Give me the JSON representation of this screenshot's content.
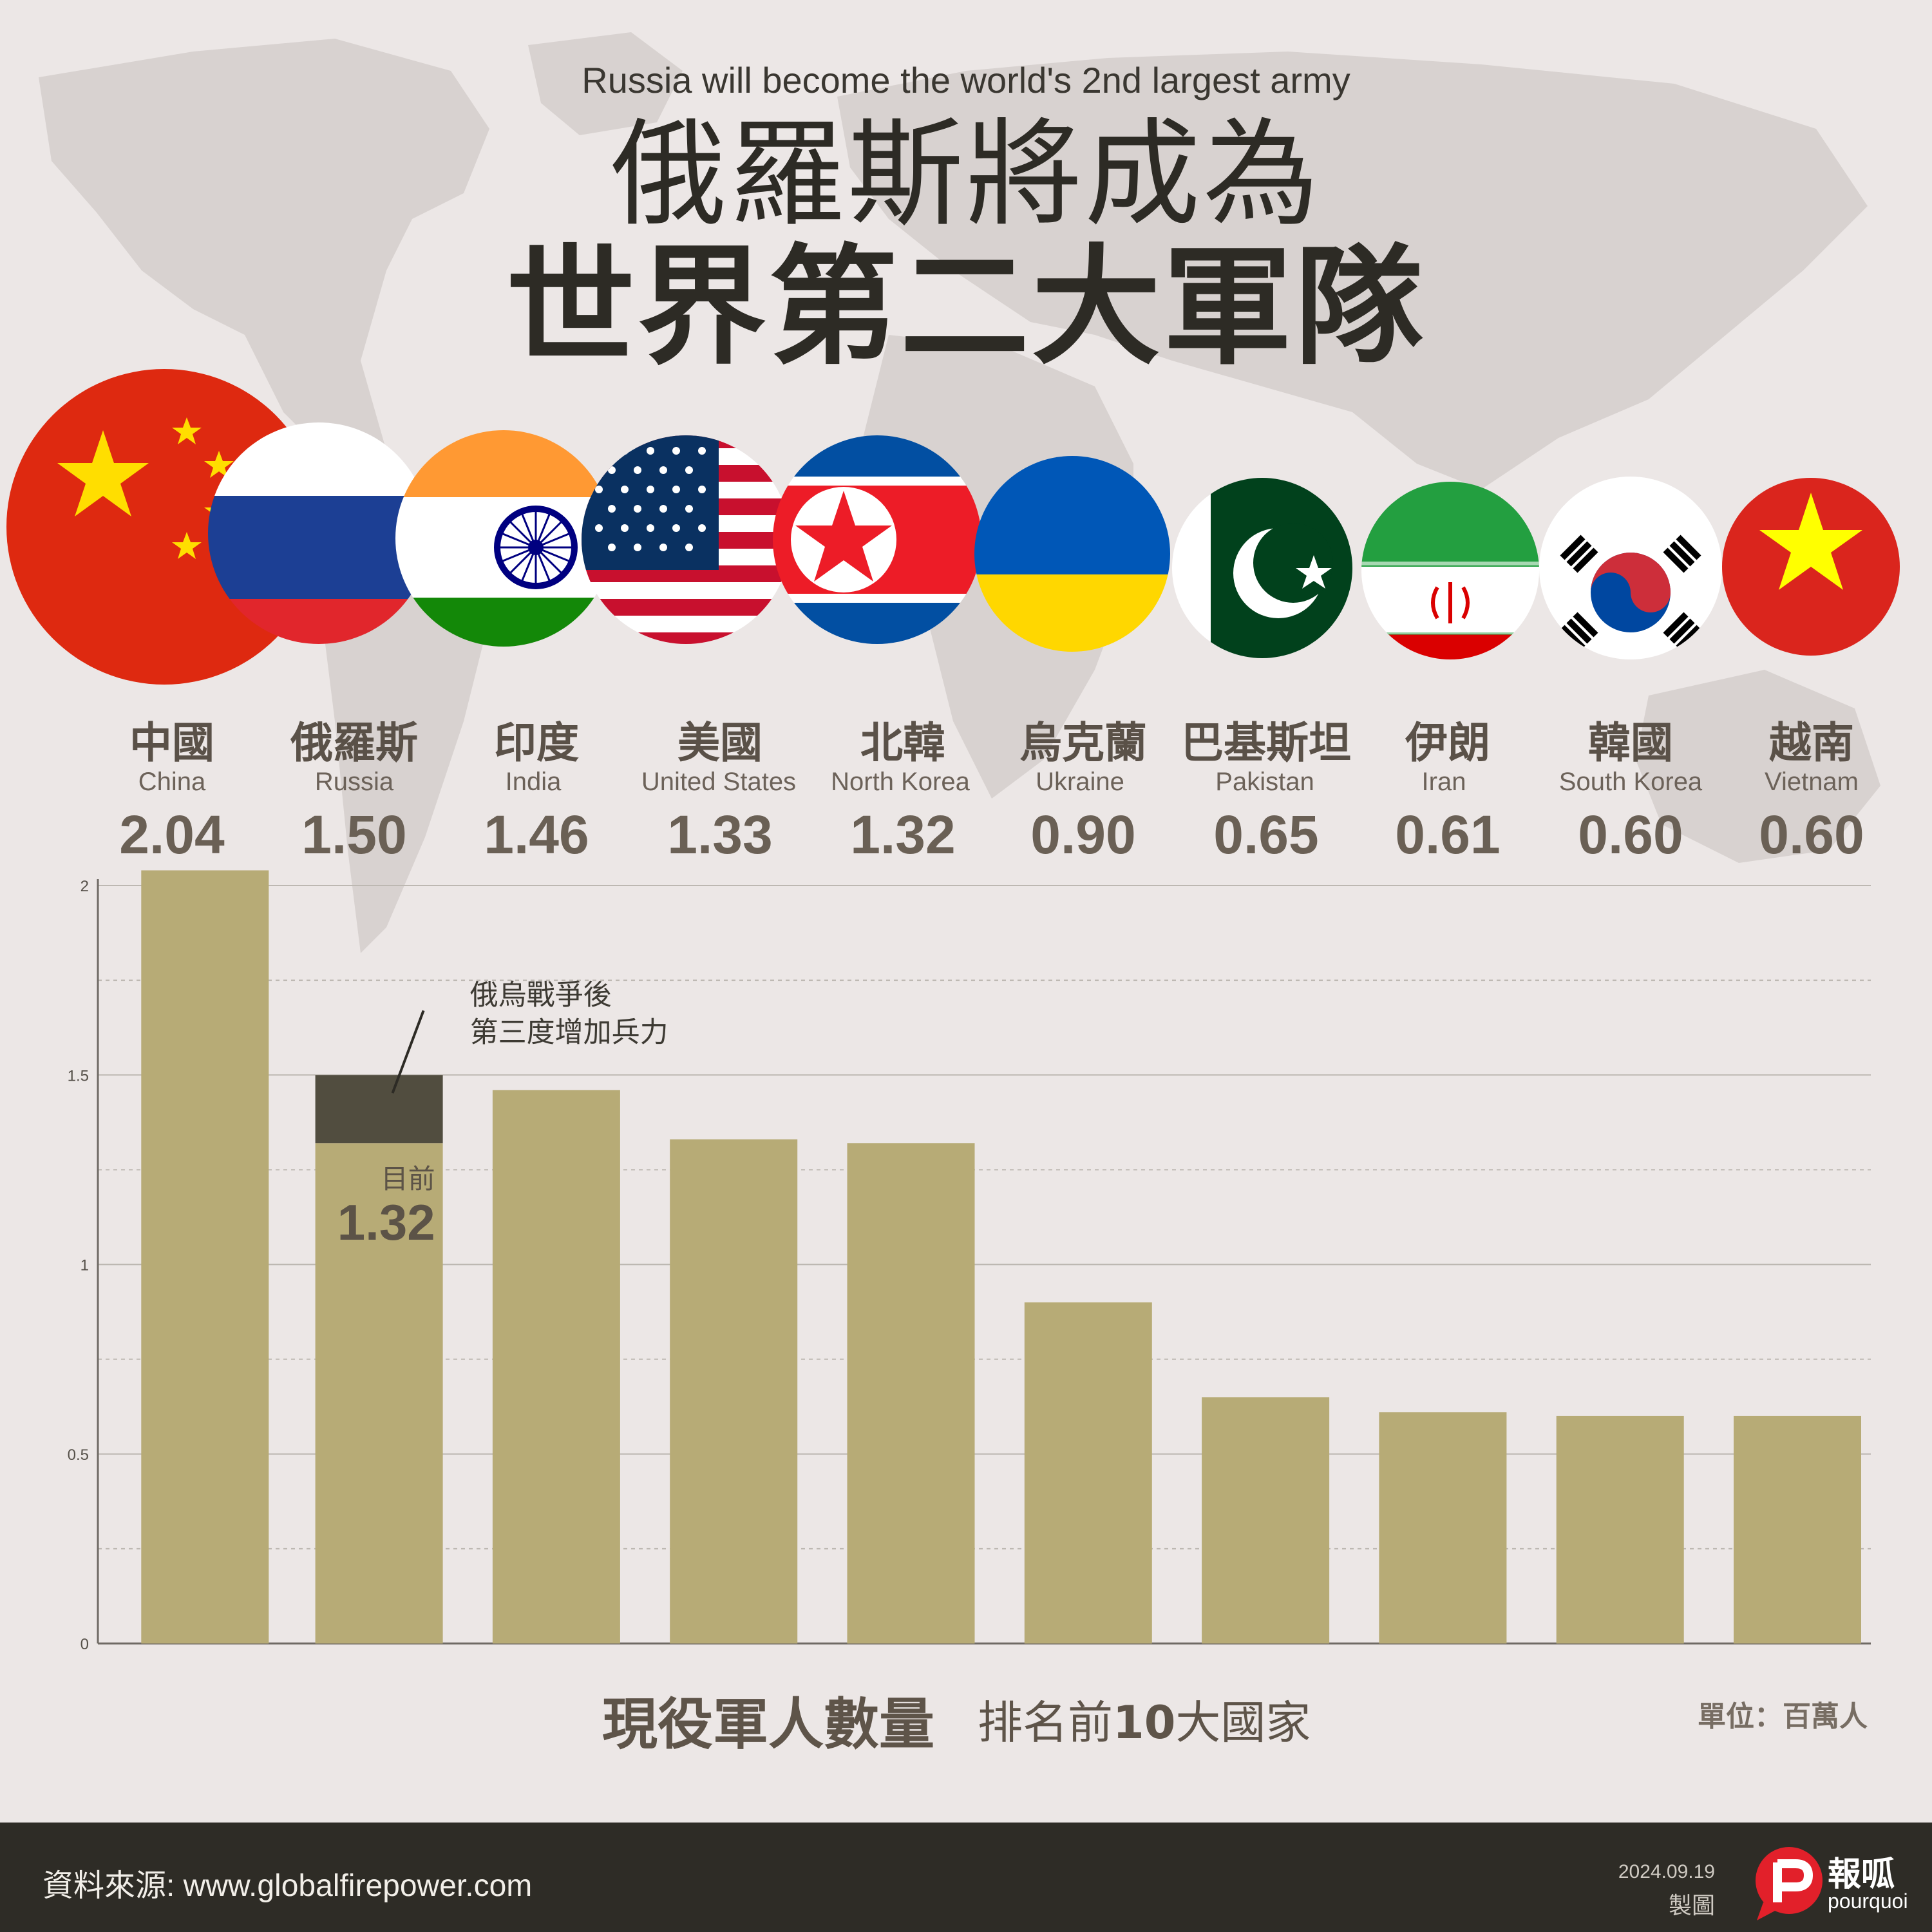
{
  "header": {
    "subtitle": "Russia will become the world's 2nd largest army",
    "title_line1": "俄羅斯將成為",
    "title_line2": "世界第二大軍隊"
  },
  "countries": [
    {
      "zh": "中國",
      "en": "China",
      "value_text": "2.04",
      "flag": "china-flag"
    },
    {
      "zh": "俄羅斯",
      "en": "Russia",
      "value_text": "1.50",
      "flag": "russia-flag"
    },
    {
      "zh": "印度",
      "en": "India",
      "value_text": "1.46",
      "flag": "india-flag"
    },
    {
      "zh": "美國",
      "en": "United States",
      "value_text": "1.33",
      "flag": "usa-flag"
    },
    {
      "zh": "北韓",
      "en": "North Korea",
      "value_text": "1.32",
      "flag": "north-korea-flag"
    },
    {
      "zh": "烏克蘭",
      "en": "Ukraine",
      "value_text": "0.90",
      "flag": "ukraine-flag"
    },
    {
      "zh": "巴基斯坦",
      "en": "Pakistan",
      "value_text": "0.65",
      "flag": "pakistan-flag"
    },
    {
      "zh": "伊朗",
      "en": "Iran",
      "value_text": "0.61",
      "flag": "iran-flag"
    },
    {
      "zh": "韓國",
      "en": "South Korea",
      "value_text": "0.60",
      "flag": "south-korea-flag"
    },
    {
      "zh": "越南",
      "en": "Vietnam",
      "value_text": "0.60",
      "flag": "vietnam-flag"
    }
  ],
  "chart_data": {
    "type": "bar",
    "categories": [
      "中國",
      "俄羅斯",
      "印度",
      "美國",
      "北韓",
      "烏克蘭",
      "巴基斯坦",
      "伊朗",
      "韓國",
      "越南"
    ],
    "series": [
      {
        "values": [
          2.04,
          1.32,
          1.46,
          1.33,
          1.32,
          0.9,
          0.65,
          0.61,
          0.6,
          0.6
        ]
      },
      {
        "values": [
          0,
          0.18,
          0,
          0,
          0,
          0,
          0,
          0,
          0,
          0
        ]
      }
    ],
    "ylim": [
      0,
      2
    ],
    "yticks": [
      0,
      0.5,
      1,
      1.5,
      2
    ],
    "ytick_labels": [
      "0",
      "0.5",
      "1",
      "1.5",
      "2"
    ],
    "grid": true,
    "annotation": {
      "text_line1": "俄烏戰爭後",
      "text_line2": "第三度增加兵力",
      "current_label": "目前",
      "current_value": "1.32"
    },
    "colors": {
      "bar": "#b7ab76",
      "increase": "#514d3f",
      "grid": "#bdb8b2",
      "axis": "#6f6a64"
    }
  },
  "caption": {
    "main": "現役軍人數量",
    "sub_prefix": "排名前",
    "sub_number": "10",
    "sub_suffix": "大國家",
    "unit": "單位：百萬人"
  },
  "footer": {
    "source": "資料來源: www.globalfirepower.com",
    "date": "2024.09.19",
    "made": "製圖",
    "brand_zh": "報呱",
    "brand_en": "pourquoi"
  }
}
